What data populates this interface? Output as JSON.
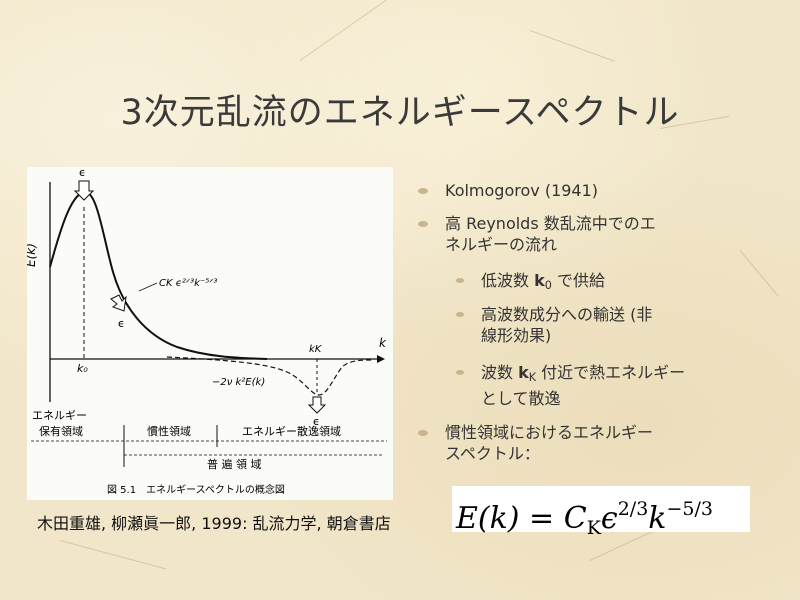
{
  "title": "3次元乱流のエネルギースペクトル",
  "figure": {
    "y_axis_label": "E(k)",
    "x_axis_label": "k",
    "epsilon_symbol": "ϵ",
    "k0_label": "k₀",
    "kk_label": "kK",
    "inertial_curve_label": "CK ϵ²ᐟ³k⁻⁵ᐟ³",
    "dissipation_curve_label": "−2ν k²E(k)",
    "region_energy_holding": "エネルギー\n保有領域",
    "region_energy_1": "エネルギー",
    "region_energy_2": "保有領域",
    "region_inertial": "慣性領域",
    "region_dissipation": "エネルギー散逸領域",
    "region_universal": "普 遍 領 域",
    "caption": "図 5.1　エネルギースペクトルの概念図"
  },
  "citation": "木田重雄, 柳瀬眞一郎, 1999: 乱流力学, 朝倉書店",
  "bullets": {
    "b1": "Kolmogorov (1941)",
    "b2_line1": "高 Reynolds 数乱流中でのエ",
    "b2_line2": "ネルギーの流れ",
    "b3_pre": "低波数 ",
    "b3_k": "k",
    "b3_sub": "0",
    "b3_post": " で供給",
    "b4_line1": "高波数成分への輸送 (非",
    "b4_line2": "線形効果)",
    "b5_pre": "波数 ",
    "b5_k": "k",
    "b5_sub": "K",
    "b5_post": " 付近で熱エネルギー",
    "b5_line2": "として散逸",
    "b6_line1": "慣性領域におけるエネルギー",
    "b6_line2": "スペクトル："
  },
  "formula": {
    "lhs": "E(k)",
    "eq": " = ",
    "C": "C",
    "C_sub": "K",
    "eps": "ϵ",
    "eps_exp": "2/3",
    "k": "k",
    "k_exp": "−5/3"
  },
  "colors": {
    "background": "#f1e6c9",
    "bullet": "#c9b48c",
    "title_text": "#3a3a3a"
  }
}
